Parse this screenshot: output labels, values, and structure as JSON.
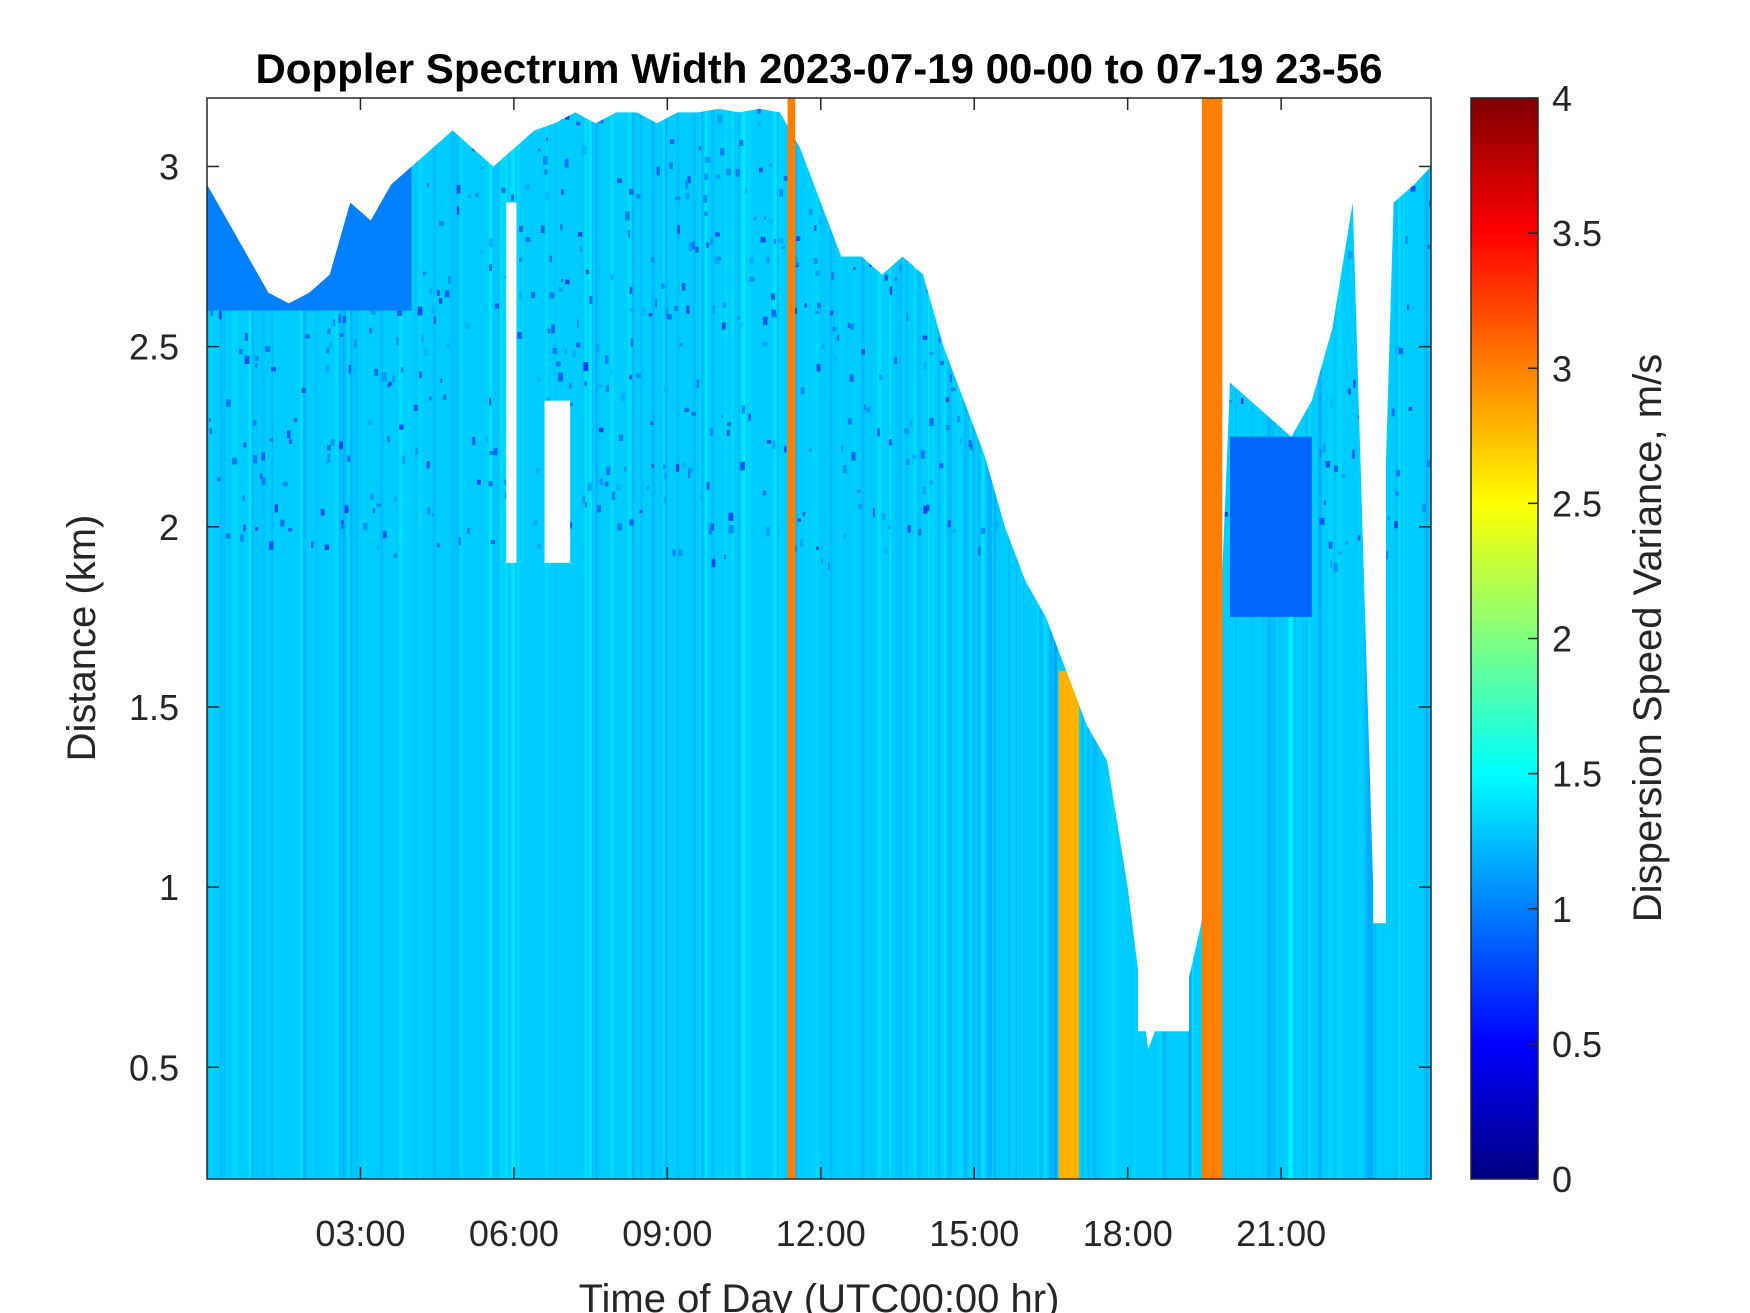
{
  "chart_data": {
    "type": "heatmap",
    "title": "Doppler Spectrum Width 2023-07-19 00-00 to 07-19 23-56",
    "xlabel": "Time of Day (UTC00:00 hr)",
    "ylabel": "Distance (km)",
    "colorbar_label": "Dispersion Speed Variance, m/s",
    "x_unit": "hour of day (UTC)",
    "xlim": [
      0.0,
      23.93
    ],
    "ylim": [
      0.19,
      3.19
    ],
    "clim": [
      0,
      4
    ],
    "colormap": "jet",
    "x_ticks": [
      3,
      6,
      9,
      12,
      15,
      18,
      21
    ],
    "x_tick_labels": [
      "03:00",
      "06:00",
      "09:00",
      "12:00",
      "15:00",
      "18:00",
      "21:00"
    ],
    "y_ticks": [
      0.5,
      1,
      1.5,
      2,
      2.5,
      3
    ],
    "y_tick_labels": [
      "0.5",
      "1",
      "1.5",
      "2",
      "2.5",
      "3"
    ],
    "colorbar_ticks": [
      0,
      0.5,
      1,
      1.5,
      2,
      2.5,
      3,
      3.5,
      4
    ],
    "colorbar_tick_labels": [
      "0",
      "0.5",
      "1",
      "1.5",
      "2",
      "2.5",
      "3",
      "3.5",
      "4"
    ],
    "background_value": 1.3,
    "no_data_color": "#ffffff",
    "no_data_top_km": [
      [
        0.0,
        2.95
      ],
      [
        0.4,
        2.85
      ],
      [
        0.8,
        2.75
      ],
      [
        1.2,
        2.65
      ],
      [
        1.6,
        2.62
      ],
      [
        2.0,
        2.65
      ],
      [
        2.4,
        2.7
      ],
      [
        2.8,
        2.9
      ],
      [
        3.2,
        2.85
      ],
      [
        3.6,
        2.95
      ],
      [
        4.0,
        3.0
      ],
      [
        4.4,
        3.05
      ],
      [
        4.8,
        3.1
      ],
      [
        5.2,
        3.05
      ],
      [
        5.6,
        3.0
      ],
      [
        6.0,
        3.05
      ],
      [
        6.4,
        3.1
      ],
      [
        6.8,
        3.12
      ],
      [
        7.2,
        3.15
      ],
      [
        7.6,
        3.12
      ],
      [
        8.0,
        3.15
      ],
      [
        8.4,
        3.15
      ],
      [
        8.8,
        3.12
      ],
      [
        9.2,
        3.15
      ],
      [
        9.6,
        3.15
      ],
      [
        10.0,
        3.16
      ],
      [
        10.4,
        3.15
      ],
      [
        10.8,
        3.16
      ],
      [
        11.2,
        3.15
      ],
      [
        11.6,
        3.05
      ],
      [
        12.0,
        2.9
      ],
      [
        12.4,
        2.75
      ],
      [
        12.8,
        2.75
      ],
      [
        13.2,
        2.7
      ],
      [
        13.6,
        2.75
      ],
      [
        14.0,
        2.7
      ],
      [
        14.4,
        2.5
      ],
      [
        14.8,
        2.35
      ],
      [
        15.2,
        2.2
      ],
      [
        15.6,
        2.0
      ],
      [
        16.0,
        1.85
      ],
      [
        16.4,
        1.75
      ],
      [
        16.8,
        1.6
      ],
      [
        17.2,
        1.45
      ],
      [
        17.6,
        1.35
      ],
      [
        18.0,
        1.0
      ],
      [
        18.4,
        0.55
      ],
      [
        18.8,
        0.7
      ],
      [
        19.2,
        0.75
      ],
      [
        19.6,
        1.0
      ],
      [
        20.0,
        2.4
      ],
      [
        20.4,
        2.35
      ],
      [
        20.8,
        2.3
      ],
      [
        21.2,
        2.25
      ],
      [
        21.6,
        2.35
      ],
      [
        22.0,
        2.55
      ],
      [
        22.4,
        2.9
      ],
      [
        22.8,
        1.0
      ],
      [
        23.2,
        2.9
      ],
      [
        23.6,
        2.95
      ],
      [
        23.93,
        3.0
      ]
    ],
    "features": [
      {
        "x": [
          11.35,
          11.5
        ],
        "y": [
          0.19,
          3.19
        ],
        "value": 3.0
      },
      {
        "x": [
          16.65,
          17.05
        ],
        "y": [
          0.19,
          1.6
        ],
        "value": 2.8
      },
      {
        "x": [
          19.45,
          19.85
        ],
        "y": [
          0.19,
          3.19
        ],
        "value": 3.0
      },
      {
        "x": [
          19.55,
          19.75
        ],
        "y": [
          0.19,
          0.9
        ],
        "value": 0.2
      },
      {
        "x": [
          5.85,
          6.05
        ],
        "y": [
          1.9,
          2.9
        ],
        "value": null
      },
      {
        "x": [
          6.6,
          7.1
        ],
        "y": [
          1.9,
          2.35
        ],
        "value": null
      },
      {
        "x": [
          16.0,
          16.3
        ],
        "y": [
          1.85,
          3.19
        ],
        "value": null
      },
      {
        "x": [
          18.2,
          19.2
        ],
        "y": [
          0.6,
          3.19
        ],
        "value": null
      },
      {
        "x": [
          22.8,
          23.05
        ],
        "y": [
          0.9,
          3.19
        ],
        "value": null
      },
      {
        "x": [
          20.0,
          21.6
        ],
        "y": [
          1.75,
          2.25
        ],
        "value": 0.9
      },
      {
        "x": [
          0.0,
          4.0
        ],
        "y": [
          2.6,
          3.0
        ],
        "value": 1.0
      }
    ]
  }
}
